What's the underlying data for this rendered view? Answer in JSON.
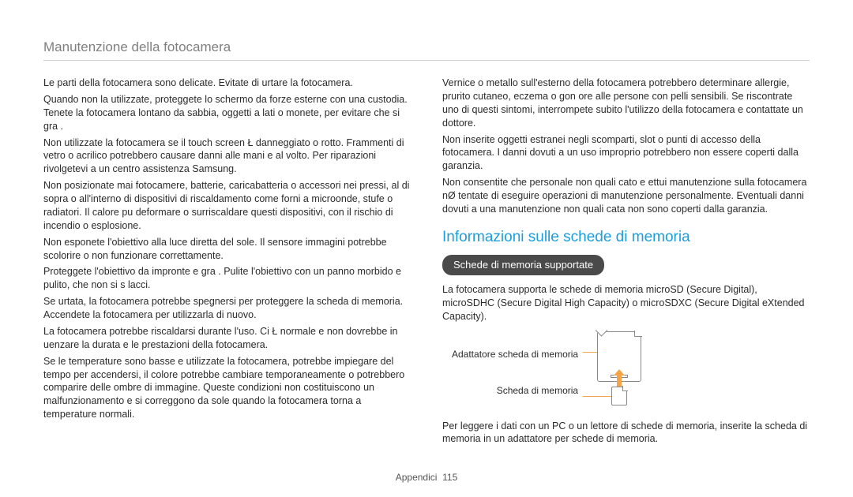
{
  "header": {
    "title": "Manutenzione della fotocamera"
  },
  "left": {
    "p1": "Le parti della fotocamera sono delicate. Evitate di urtare la fotocamera.",
    "p2": "Quando non la utilizzate, proteggete lo schermo da forze esterne con una custodia. Tenete la fotocamera lontano da sabbia, oggetti a lati o monete, per evitare che si gra .",
    "p3": "Non utilizzate la fotocamera se il touch screen Ł danneggiato o rotto. Frammenti di vetro o acrilico potrebbero causare danni alle mani e al volto. Per riparazioni rivolgetevi a un centro assistenza Samsung.",
    "p4": "Non posizionate mai fotocamere, batterie, caricabatteria o accessori nei pressi, al di sopra o all'interno di dispositivi di riscaldamento come forni a microonde, stufe o radiatori. Il calore pu  deformare o surriscaldare questi dispositivi, con il rischio di incendio o esplosione.",
    "p5": "Non esponete l'obiettivo alla luce diretta del sole. Il sensore immagini potrebbe scolorire o non funzionare correttamente.",
    "p6": "Proteggete l'obiettivo da impronte e gra . Pulite l'obiettivo con un panno morbido e pulito, che non si s lacci.",
    "p7": "Se urtata, la fotocamera potrebbe spegnersi per proteggere la scheda di memoria. Accendete la fotocamera per utilizzarla di nuovo.",
    "p8": "La fotocamera potrebbe riscaldarsi durante l'uso. Ci  Ł normale e non dovrebbe in uenzare la durata e le prestazioni della fotocamera.",
    "p9": "Se le temperature sono basse e utilizzate la fotocamera, potrebbe impiegare del tempo per accendersi, il colore potrebbe cambiare temporaneamente o potrebbero comparire delle ombre di immagine. Queste condizioni non costituiscono un malfunzionamento e si correggono da sole quando la fotocamera torna a temperature normali."
  },
  "right": {
    "p1": "Vernice o metallo sull'esterno della fotocamera potrebbero determinare allergie, prurito cutaneo, eczema o gon ore alle persone con pelli sensibili. Se riscontrate uno di questi sintomi, interrompete subito l'utilizzo della fotocamera e contattate un dottore.",
    "p2": "Non inserite oggetti estranei negli scomparti, slot o punti di accesso della fotocamera. I danni dovuti a un uso improprio potrebbero non essere coperti dalla garanzia.",
    "p3": "Non consentite che personale non quali cato e ettui manutenzione sulla fotocamera nØ tentate di eseguire operazioni di manutenzione personalmente. Eventuali danni dovuti a una manutenzione non quali cata non sono coperti dalla garanzia.",
    "section_title": "Informazioni sulle schede di memoria",
    "pill": "Schede di memoria supportate",
    "p4": "La fotocamera supporta le schede di memoria microSD (Secure Digital), microSDHC (Secure Digital High Capacity) o microSDXC (Secure Digital eXtended Capacity).",
    "label_adapter": "Adattatore scheda di memoria",
    "label_card": "Scheda di memoria",
    "p5": "Per leggere i dati con un PC o un lettore di schede di memoria, inserite la scheda di memoria in un adattatore per schede di memoria."
  },
  "footer": {
    "section": "Appendici",
    "page": "115"
  },
  "colors": {
    "accent": "#1a9edc",
    "pill_bg": "#4a4a4a",
    "arrow": "#f5a44a",
    "text": "#2b2b2b",
    "muted": "#808080"
  }
}
